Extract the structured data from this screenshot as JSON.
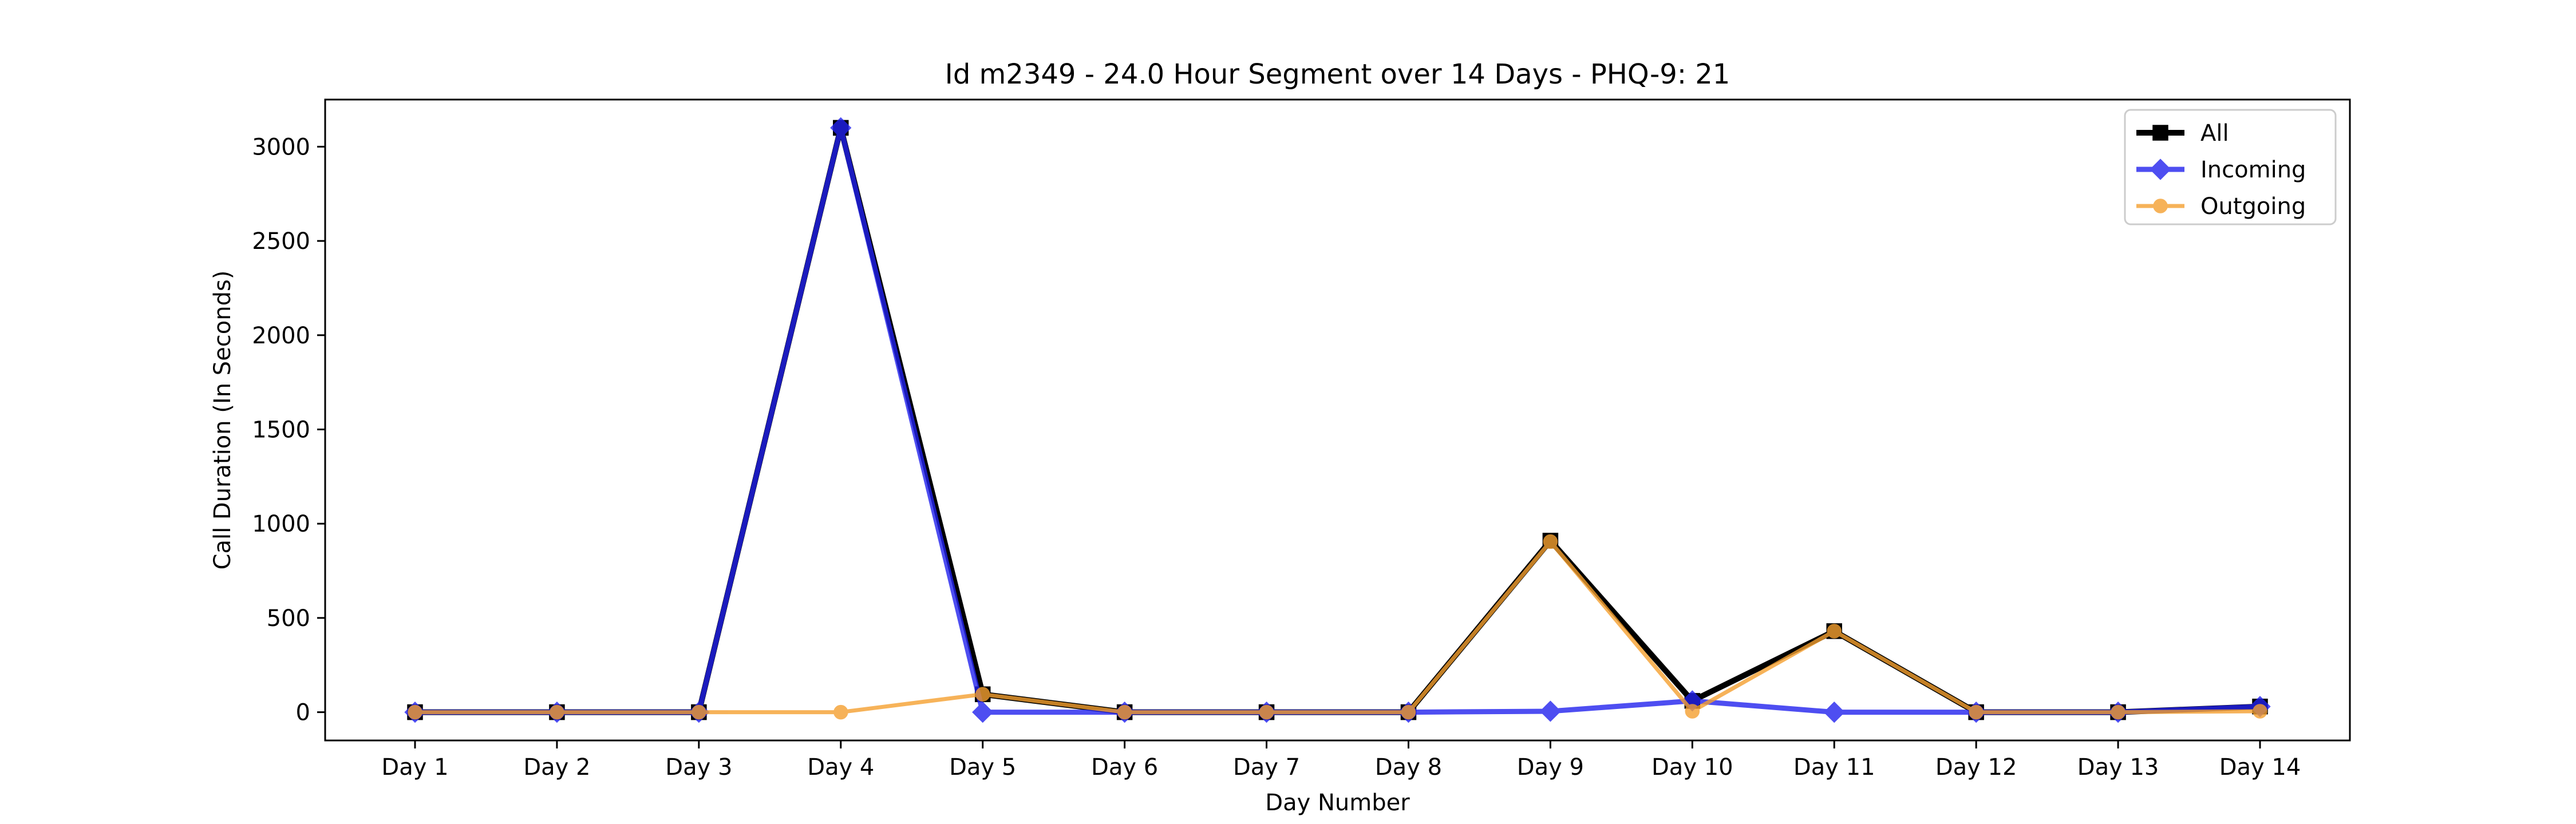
{
  "chart_data": {
    "type": "line",
    "title": "Id m2349 - 24.0 Hour Segment over 14 Days - PHQ-9: 21",
    "xlabel": "Day Number",
    "ylabel": "Call Duration (In Seconds)",
    "categories": [
      "Day 1",
      "Day 2",
      "Day 3",
      "Day 4",
      "Day 5",
      "Day 6",
      "Day 7",
      "Day 8",
      "Day 9",
      "Day 10",
      "Day 11",
      "Day 12",
      "Day 13",
      "Day 14"
    ],
    "ylim": [
      -150,
      3250
    ],
    "yticks": [
      0,
      500,
      1000,
      1500,
      2000,
      2500,
      3000
    ],
    "grid": false,
    "legend": "top-right",
    "series": [
      {
        "name": "All",
        "color": "#000000",
        "marker": "square",
        "values": [
          0,
          0,
          0,
          3100,
          95,
          0,
          0,
          0,
          910,
          60,
          430,
          0,
          0,
          30
        ]
      },
      {
        "name": "Incoming",
        "color": "#2222ee",
        "marker": "diamond",
        "values": [
          0,
          0,
          0,
          3100,
          0,
          0,
          0,
          0,
          5,
          60,
          0,
          0,
          0,
          30
        ]
      },
      {
        "name": "Outgoing",
        "color": "#f5a030",
        "marker": "circle",
        "values": [
          0,
          0,
          0,
          0,
          95,
          0,
          0,
          0,
          905,
          5,
          430,
          0,
          0,
          5
        ]
      }
    ]
  }
}
